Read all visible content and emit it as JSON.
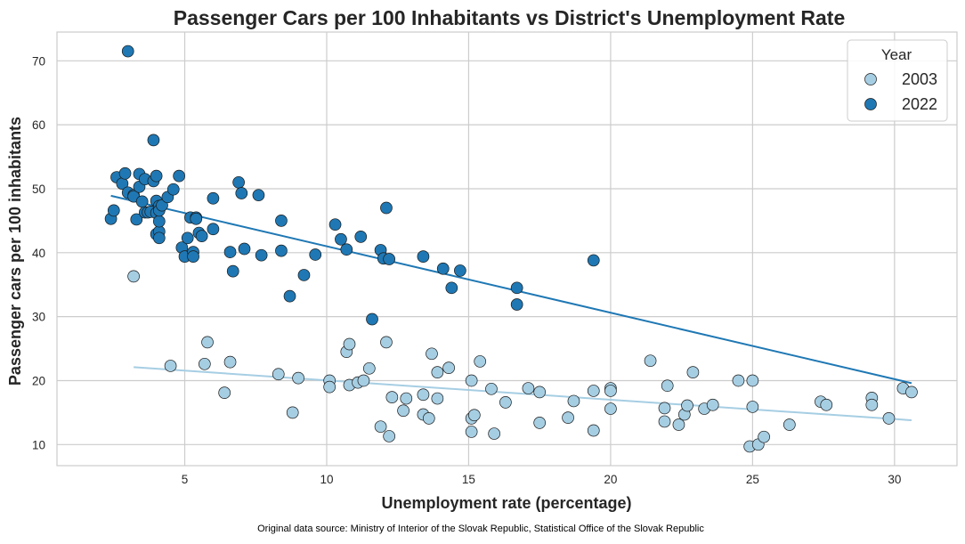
{
  "chart_data": {
    "type": "scatter",
    "title": "Passenger Cars per 100 Inhabitants vs District's Unemployment Rate",
    "xlabel": "Unemployment rate (percentage)",
    "ylabel": "Passenger cars per 100 inhabitants",
    "xlim": [
      0.5,
      32.2
    ],
    "ylim": [
      6.7,
      74.5
    ],
    "xticks": [
      5,
      10,
      15,
      20,
      25,
      30
    ],
    "yticks": [
      10,
      20,
      30,
      40,
      50,
      60,
      70
    ],
    "grid": true,
    "legend": {
      "title": "Year",
      "placement": "top-right"
    },
    "source_note": "Original data source: Ministry of Interior of the Slovak Republic, Statistical Office of the Slovak Republic",
    "series": [
      {
        "name": "2003",
        "color": "#a6cee3",
        "points": [
          [
            3.2,
            36.3
          ],
          [
            4.5,
            22.3
          ],
          [
            5.7,
            22.6
          ],
          [
            5.8,
            26.0
          ],
          [
            6.4,
            18.1
          ],
          [
            6.6,
            22.9
          ],
          [
            8.3,
            21.0
          ],
          [
            8.8,
            15.0
          ],
          [
            9.0,
            20.4
          ],
          [
            10.1,
            20.0
          ],
          [
            10.1,
            19.0
          ],
          [
            10.7,
            24.5
          ],
          [
            10.8,
            25.7
          ],
          [
            10.8,
            19.3
          ],
          [
            11.1,
            19.7
          ],
          [
            11.3,
            20.0
          ],
          [
            11.5,
            21.9
          ],
          [
            11.9,
            12.8
          ],
          [
            12.1,
            26.0
          ],
          [
            12.2,
            11.3
          ],
          [
            12.3,
            17.4
          ],
          [
            12.7,
            15.3
          ],
          [
            12.8,
            17.2
          ],
          [
            13.4,
            17.8
          ],
          [
            13.4,
            14.7
          ],
          [
            13.6,
            14.1
          ],
          [
            13.7,
            24.2
          ],
          [
            13.9,
            17.2
          ],
          [
            13.9,
            21.3
          ],
          [
            14.3,
            22.0
          ],
          [
            15.1,
            20.0
          ],
          [
            15.1,
            14.1
          ],
          [
            15.1,
            12.0
          ],
          [
            15.2,
            14.6
          ],
          [
            15.4,
            23.0
          ],
          [
            15.8,
            18.7
          ],
          [
            15.9,
            11.7
          ],
          [
            16.3,
            16.6
          ],
          [
            17.1,
            18.8
          ],
          [
            17.5,
            18.2
          ],
          [
            17.5,
            13.4
          ],
          [
            18.5,
            14.2
          ],
          [
            18.7,
            16.8
          ],
          [
            19.4,
            18.4
          ],
          [
            19.4,
            12.2
          ],
          [
            20.0,
            18.8
          ],
          [
            20.0,
            18.4
          ],
          [
            20.0,
            15.6
          ],
          [
            21.4,
            23.1
          ],
          [
            21.9,
            15.7
          ],
          [
            21.9,
            13.6
          ],
          [
            22.0,
            19.2
          ],
          [
            22.4,
            13.1
          ],
          [
            22.6,
            14.7
          ],
          [
            22.7,
            16.1
          ],
          [
            22.9,
            21.3
          ],
          [
            23.3,
            15.6
          ],
          [
            23.6,
            16.2
          ],
          [
            24.5,
            20.0
          ],
          [
            24.9,
            9.7
          ],
          [
            25.0,
            20.0
          ],
          [
            25.0,
            15.9
          ],
          [
            25.2,
            10.0
          ],
          [
            25.4,
            11.2
          ],
          [
            26.3,
            13.1
          ],
          [
            27.4,
            16.7
          ],
          [
            27.6,
            16.2
          ],
          [
            29.2,
            17.3
          ],
          [
            29.2,
            16.2
          ],
          [
            29.8,
            14.1
          ],
          [
            30.3,
            18.8
          ],
          [
            30.6,
            18.2
          ]
        ]
      },
      {
        "name": "2022",
        "color": "#1f78b4",
        "points": [
          [
            2.4,
            45.3
          ],
          [
            2.5,
            46.6
          ],
          [
            2.6,
            51.8
          ],
          [
            2.8,
            50.8
          ],
          [
            2.9,
            52.4
          ],
          [
            3.0,
            49.4
          ],
          [
            3.0,
            71.5
          ],
          [
            3.2,
            49.0
          ],
          [
            3.2,
            48.8
          ],
          [
            3.3,
            45.2
          ],
          [
            3.4,
            50.3
          ],
          [
            3.4,
            52.3
          ],
          [
            3.5,
            48.0
          ],
          [
            3.6,
            46.3
          ],
          [
            3.6,
            51.5
          ],
          [
            3.7,
            46.3
          ],
          [
            3.8,
            46.4
          ],
          [
            3.9,
            51.2
          ],
          [
            3.9,
            57.6
          ],
          [
            4.0,
            48.1
          ],
          [
            4.0,
            52.0
          ],
          [
            4.0,
            46.2
          ],
          [
            4.0,
            42.9
          ],
          [
            4.1,
            47.3
          ],
          [
            4.1,
            43.3
          ],
          [
            4.1,
            44.9
          ],
          [
            4.1,
            42.3
          ],
          [
            4.1,
            46.6
          ],
          [
            4.2,
            47.4
          ],
          [
            4.4,
            48.7
          ],
          [
            4.6,
            49.9
          ],
          [
            4.8,
            52.0
          ],
          [
            4.9,
            40.8
          ],
          [
            5.0,
            39.4
          ],
          [
            5.1,
            42.3
          ],
          [
            5.2,
            45.5
          ],
          [
            5.3,
            40.1
          ],
          [
            5.3,
            39.4
          ],
          [
            5.4,
            45.5
          ],
          [
            5.4,
            45.3
          ],
          [
            5.5,
            43.1
          ],
          [
            5.6,
            42.6
          ],
          [
            6.0,
            43.7
          ],
          [
            6.0,
            48.5
          ],
          [
            6.6,
            40.1
          ],
          [
            6.7,
            37.1
          ],
          [
            6.9,
            51.0
          ],
          [
            7.0,
            49.3
          ],
          [
            7.1,
            40.6
          ],
          [
            7.6,
            49.0
          ],
          [
            7.7,
            39.6
          ],
          [
            8.4,
            40.3
          ],
          [
            8.4,
            45.0
          ],
          [
            8.7,
            33.2
          ],
          [
            9.2,
            36.5
          ],
          [
            9.6,
            39.7
          ],
          [
            10.3,
            44.4
          ],
          [
            10.5,
            42.1
          ],
          [
            10.7,
            40.5
          ],
          [
            11.2,
            42.5
          ],
          [
            11.6,
            29.6
          ],
          [
            11.9,
            40.4
          ],
          [
            12.0,
            39.1
          ],
          [
            12.1,
            47.0
          ],
          [
            12.2,
            39.0
          ],
          [
            13.4,
            39.4
          ],
          [
            14.1,
            37.5
          ],
          [
            14.4,
            34.5
          ],
          [
            14.7,
            37.2
          ],
          [
            16.7,
            34.5
          ],
          [
            16.7,
            31.9
          ],
          [
            19.4,
            38.8
          ]
        ]
      }
    ],
    "trend_lines": [
      {
        "series": "2003",
        "x": [
          3.2,
          30.6
        ],
        "y": [
          22.1,
          13.8
        ]
      },
      {
        "series": "2022",
        "x": [
          2.4,
          30.6
        ],
        "y": [
          48.9,
          19.6
        ]
      }
    ]
  }
}
